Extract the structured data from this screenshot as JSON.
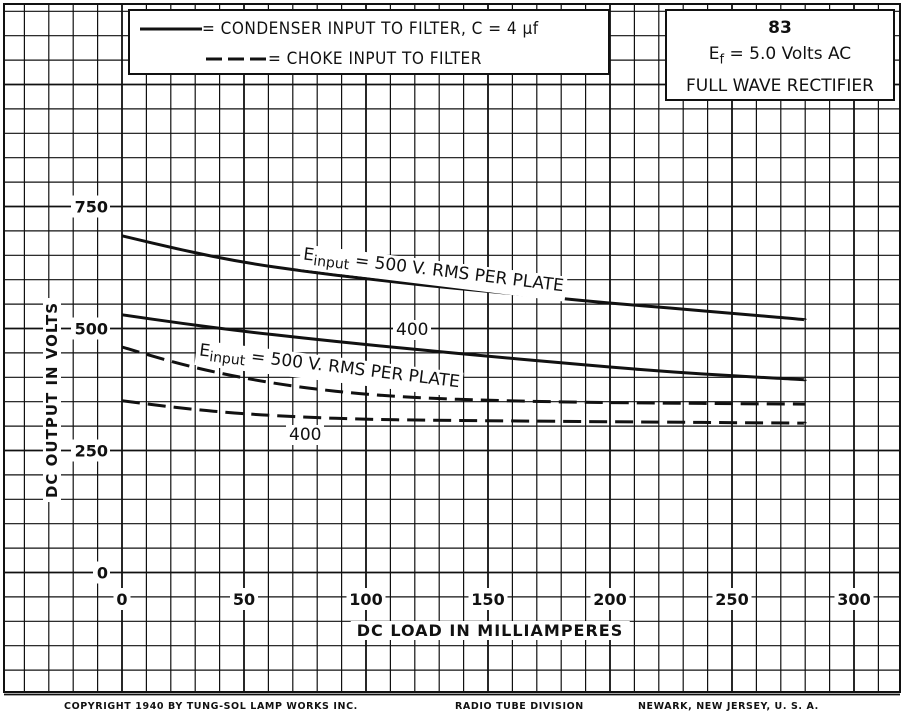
{
  "chart_data": {
    "type": "line",
    "xlabel": "DC LOAD IN MILLIAMPERES",
    "ylabel": "DC OUTPUT IN VOLTS",
    "xlim": [
      0,
      300
    ],
    "ylim": [
      0,
      750
    ],
    "x_ticks": [
      "0",
      "50",
      "100",
      "150",
      "200",
      "250",
      "300"
    ],
    "y_ticks": [
      "0",
      "250",
      "500",
      "750"
    ],
    "grid": true,
    "legend": {
      "solid": "= CONDENSER INPUT TO FILTER, C = 4 µf",
      "dashed": "= CHOKE INPUT TO FILTER"
    },
    "series": [
      {
        "style": "solid",
        "x": [
          0,
          25,
          50,
          75,
          100,
          125,
          150,
          175,
          200,
          225,
          250,
          280
        ],
        "values": [
          690,
          660,
          635,
          617,
          602,
          588,
          576,
          564,
          552,
          542,
          531,
          518
        ]
      },
      {
        "style": "solid",
        "x": [
          0,
          25,
          50,
          75,
          100,
          125,
          150,
          175,
          200,
          225,
          250,
          280
        ],
        "values": [
          528,
          510,
          494,
          480,
          467,
          455,
          443,
          432,
          421,
          411,
          403,
          395
        ]
      },
      {
        "style": "dashed",
        "x": [
          0,
          25,
          50,
          75,
          100,
          125,
          150,
          175,
          200,
          225,
          250,
          280
        ],
        "values": [
          462,
          425,
          398,
          378,
          365,
          357,
          353,
          350,
          348,
          347,
          346,
          345
        ]
      },
      {
        "style": "dashed",
        "x": [
          0,
          25,
          50,
          75,
          100,
          125,
          150,
          175,
          200,
          225,
          250,
          280
        ],
        "values": [
          352,
          336,
          325,
          318,
          314,
          312,
          311,
          310,
          309,
          308,
          307,
          306
        ]
      }
    ],
    "annotations": {
      "condenser_500": {
        "prefix": "E",
        "sub": "input",
        "text": " = 500 V. RMS PER PLATE"
      },
      "condenser_400": "400",
      "choke_500": {
        "prefix": "E",
        "sub": "input",
        "text": " = 500 V. RMS PER PLATE"
      },
      "choke_400": "400"
    }
  },
  "info": {
    "tube": "83",
    "ef_prefix": "E",
    "ef_sub": "f",
    "ef_rest": " = 5.0 Volts AC",
    "type": "FULL WAVE RECTIFIER"
  },
  "legend_text": {
    "solid": "= CONDENSER INPUT TO FILTER, C = 4 µf",
    "dashed": "= CHOKE INPUT TO FILTER"
  },
  "footer": {
    "copyright": "COPYRIGHT  1940  BY  TUNG-SOL LAMP WORKS INC.",
    "division": "RADIO TUBE DIVISION",
    "address": "NEWARK, NEW JERSEY, U. S. A."
  }
}
